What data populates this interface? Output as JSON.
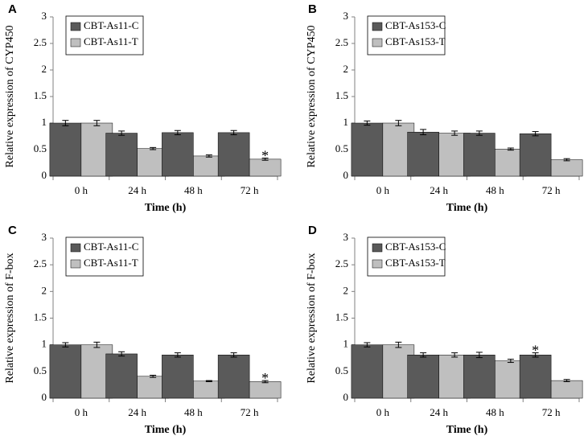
{
  "colors": {
    "control": "#5a5a5a",
    "treated": "#bfbfbf",
    "axis": "#808080",
    "error": "#000000"
  },
  "chart_data": [
    {
      "panel": "A",
      "type": "bar",
      "title": "",
      "xlabel": "Time (h)",
      "ylabel": "Relative expression  of CYP450",
      "ylim": [
        0,
        3
      ],
      "yticks": [
        "0",
        "0.5",
        "1",
        "1.5",
        "2",
        "2.5",
        "3"
      ],
      "categories": [
        "0 h",
        "24 h",
        "48 h",
        "72 h"
      ],
      "series": [
        {
          "name": "CBT-As11-C",
          "values": [
            1.0,
            0.81,
            0.82,
            0.82
          ],
          "errors": [
            0.05,
            0.04,
            0.04,
            0.04
          ]
        },
        {
          "name": "CBT-As11-T",
          "values": [
            1.0,
            0.52,
            0.38,
            0.32
          ],
          "errors": [
            0.05,
            0.02,
            0.02,
            0.02
          ]
        }
      ],
      "legend": "top-left",
      "annotations": [
        {
          "text": "*",
          "category": "72 h",
          "series": "CBT-As11-T"
        }
      ]
    },
    {
      "panel": "B",
      "type": "bar",
      "title": "",
      "xlabel": "Time (h)",
      "ylabel": "Relative expression  of CYP450",
      "ylim": [
        0,
        3
      ],
      "yticks": [
        "0",
        "0.5",
        "1",
        "1.5",
        "2",
        "2.5",
        "3"
      ],
      "categories": [
        "0 h",
        "24 h",
        "48 h",
        "72 h"
      ],
      "series": [
        {
          "name": "CBT-As153-C",
          "values": [
            1.0,
            0.83,
            0.81,
            0.8
          ],
          "errors": [
            0.04,
            0.05,
            0.04,
            0.04
          ]
        },
        {
          "name": "CBT-As153-T",
          "values": [
            1.0,
            0.81,
            0.51,
            0.31
          ],
          "errors": [
            0.05,
            0.04,
            0.02,
            0.02
          ]
        }
      ],
      "legend": "top-left",
      "annotations": []
    },
    {
      "panel": "C",
      "type": "bar",
      "title": "",
      "xlabel": "Time (h)",
      "ylabel": "Relative expression  of F-box",
      "ylim": [
        0,
        3
      ],
      "yticks": [
        "0",
        "0.5",
        "1",
        "1.5",
        "2",
        "2.5",
        "3"
      ],
      "categories": [
        "0 h",
        "24 h",
        "48 h",
        "72 h"
      ],
      "series": [
        {
          "name": "CBT-As11-C",
          "values": [
            1.0,
            0.83,
            0.81,
            0.81
          ],
          "errors": [
            0.04,
            0.04,
            0.04,
            0.04
          ]
        },
        {
          "name": "CBT-As11-T",
          "values": [
            1.0,
            0.41,
            0.32,
            0.31
          ],
          "errors": [
            0.05,
            0.02,
            0.01,
            0.02
          ]
        }
      ],
      "legend": "top-left",
      "annotations": [
        {
          "text": "*",
          "category": "72 h",
          "series": "CBT-As11-T"
        }
      ]
    },
    {
      "panel": "D",
      "type": "bar",
      "title": "",
      "xlabel": "Time (h)",
      "ylabel": "Relative expression  of F-box",
      "ylim": [
        0,
        3
      ],
      "yticks": [
        "0",
        "0.5",
        "1",
        "1.5",
        "2",
        "2.5",
        "3"
      ],
      "categories": [
        "0 h",
        "24 h",
        "48 h",
        "72 h"
      ],
      "series": [
        {
          "name": "CBT-As153-C",
          "values": [
            1.0,
            0.81,
            0.81,
            0.81
          ],
          "errors": [
            0.04,
            0.04,
            0.05,
            0.04
          ]
        },
        {
          "name": "CBT-As153-T",
          "values": [
            1.0,
            0.81,
            0.7,
            0.33
          ],
          "errors": [
            0.05,
            0.04,
            0.03,
            0.02
          ]
        }
      ],
      "legend": "top-left",
      "annotations": [
        {
          "text": "*",
          "category": "72 h",
          "series": "CBT-As153-C"
        }
      ]
    }
  ]
}
